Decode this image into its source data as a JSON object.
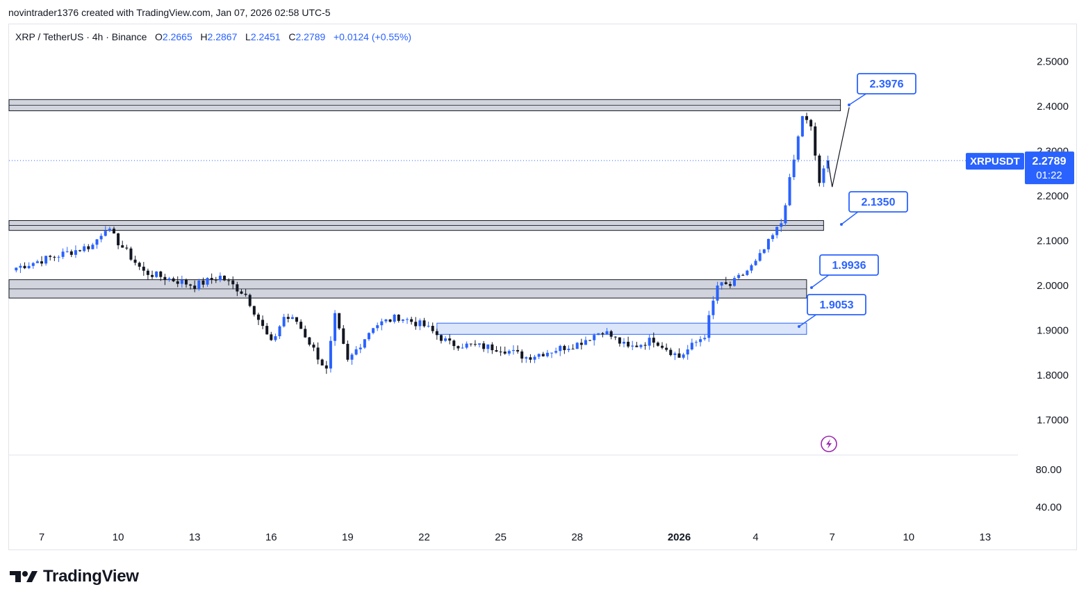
{
  "byline": "novintrader1376 created with TradingView.com, Jan 07, 2026 02:58 UTC-5",
  "legend": {
    "symbol": "XRP / TetherUS · 4h · Binance",
    "o_label": "O",
    "o_value": "2.2665",
    "h_label": "H",
    "h_value": "2.2867",
    "l_label": "L",
    "l_value": "2.2451",
    "c_label": "C",
    "c_value": "2.2789",
    "change": "+0.0124 (+0.55%)"
  },
  "price_badge": {
    "ticker": "XRPUSDT",
    "price": "2.2789",
    "countdown": "01:22"
  },
  "brand": "TradingView",
  "colors": {
    "up": "#2962ff",
    "down": "#131722",
    "zone_gray": "#d1d4dc",
    "zone_blue": "#dbe6fb",
    "callout": "#2962ff",
    "bolt": "#9c27b0"
  },
  "icons": {
    "bolt": "lightning-icon",
    "logo": "tradingview-logo-icon"
  },
  "chart_data": {
    "type": "candlestick",
    "timeframe": "4h",
    "last_price": 2.2789,
    "y_ticks": [
      "2.5000",
      "2.4000",
      "2.3000",
      "2.2000",
      "2.1000",
      "2.0000",
      "1.9000",
      "1.8000",
      "1.7000"
    ],
    "ylim": [
      1.63,
      2.55
    ],
    "x_ticks": [
      "7",
      "10",
      "13",
      "16",
      "19",
      "22",
      "25",
      "28",
      "2026",
      "4",
      "7",
      "10",
      "13"
    ],
    "x_tick_dates": [
      "2025-12-07",
      "2025-12-10",
      "2025-12-13",
      "2025-12-16",
      "2025-12-19",
      "2025-12-22",
      "2025-12-25",
      "2025-12-28",
      "2026-01-01",
      "2026-01-04",
      "2026-01-07",
      "2026-01-10",
      "2026-01-13"
    ],
    "oscillator_ticks": [
      "80.00",
      "40.00"
    ],
    "levels": [
      {
        "label": "2.3976",
        "price": 2.3976,
        "zone": [
          2.39,
          2.415
        ],
        "style": "gray"
      },
      {
        "label": "2.1350",
        "price": 2.135,
        "zone": [
          2.123,
          2.145
        ],
        "style": "gray"
      },
      {
        "label": "1.9936",
        "price": 1.9936,
        "zone": [
          1.972,
          2.013
        ],
        "style": "gray"
      },
      {
        "label": "1.9053",
        "price": 1.9053,
        "zone": [
          1.891,
          1.916
        ],
        "style": "blue"
      }
    ],
    "anchors": [
      {
        "date": "2025-12-06",
        "price": 2.04
      },
      {
        "date": "2025-12-09",
        "price": 2.09
      },
      {
        "date": "2025-12-09T12:00",
        "price": 2.13
      },
      {
        "date": "2025-12-11",
        "price": 2.03
      },
      {
        "date": "2025-12-13",
        "price": 2.0
      },
      {
        "date": "2025-12-14",
        "price": 2.02
      },
      {
        "date": "2025-12-15",
        "price": 1.98
      },
      {
        "date": "2025-12-16",
        "price": 1.87
      },
      {
        "date": "2025-12-16T12:00",
        "price": 1.93
      },
      {
        "date": "2025-12-17",
        "price": 1.92
      },
      {
        "date": "2025-12-18T04:00",
        "price": 1.81
      },
      {
        "date": "2025-12-18T12:00",
        "price": 1.93
      },
      {
        "date": "2025-12-19",
        "price": 1.83
      },
      {
        "date": "2025-12-20",
        "price": 1.91
      },
      {
        "date": "2025-12-21",
        "price": 1.93
      },
      {
        "date": "2025-12-22",
        "price": 1.91
      },
      {
        "date": "2025-12-23",
        "price": 1.87
      },
      {
        "date": "2025-12-25",
        "price": 1.86
      },
      {
        "date": "2025-12-26",
        "price": 1.84
      },
      {
        "date": "2025-12-28",
        "price": 1.87
      },
      {
        "date": "2025-12-29",
        "price": 1.9
      },
      {
        "date": "2025-12-30",
        "price": 1.86
      },
      {
        "date": "2025-12-31",
        "price": 1.88
      },
      {
        "date": "2026-01-01",
        "price": 1.84
      },
      {
        "date": "2026-01-02",
        "price": 1.89
      },
      {
        "date": "2026-01-02T12:00",
        "price": 2.0
      },
      {
        "date": "2026-01-03",
        "price": 2.0
      },
      {
        "date": "2026-01-04",
        "price": 2.05
      },
      {
        "date": "2026-01-05",
        "price": 2.14
      },
      {
        "date": "2026-01-05T12:00",
        "price": 2.28
      },
      {
        "date": "2026-01-05T20:00",
        "price": 2.38
      },
      {
        "date": "2026-01-06T04:00",
        "price": 2.35
      },
      {
        "date": "2026-01-06T12:00",
        "price": 2.23
      },
      {
        "date": "2026-01-06T20:00",
        "price": 2.2789
      }
    ],
    "projection": [
      {
        "date": "2026-01-06T20:00",
        "price": 2.2789
      },
      {
        "date": "2026-01-07",
        "price": 2.22
      },
      {
        "date": "2026-01-07T16:00",
        "price": 2.3976
      }
    ]
  }
}
